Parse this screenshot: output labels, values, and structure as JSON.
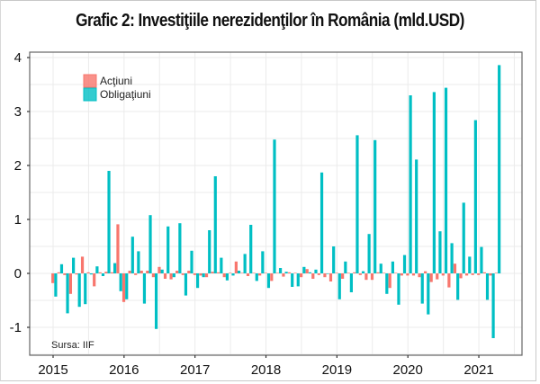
{
  "chart_data": {
    "type": "bar",
    "title": "Grafic 2: Investiţiile nerezidenţilor în România (mld.USD)",
    "xlabel": "",
    "ylabel": "",
    "ylim": [
      -1.5,
      4.1
    ],
    "yticks": [
      4,
      3,
      2,
      1,
      0,
      -1
    ],
    "ytick_labels": [
      "4",
      "3",
      "2",
      "1",
      "0",
      "-1"
    ],
    "xticks": [
      "2015",
      "2016",
      "2017",
      "2018",
      "2019",
      "2020",
      "2021"
    ],
    "grid": true,
    "legend_position": "top-left",
    "source": "Sursa: IIF",
    "colors": {
      "actiuni": "#f8766d",
      "obligatiuni": "#00bfc4"
    },
    "categories": [
      "2015-01",
      "2015-02",
      "2015-03",
      "2015-04",
      "2015-05",
      "2015-06",
      "2015-07",
      "2015-08",
      "2015-09",
      "2015-10",
      "2015-11",
      "2015-12",
      "2016-01",
      "2016-02",
      "2016-03",
      "2016-04",
      "2016-05",
      "2016-06",
      "2016-07",
      "2016-08",
      "2016-09",
      "2016-10",
      "2016-11",
      "2016-12",
      "2017-01",
      "2017-02",
      "2017-03",
      "2017-04",
      "2017-05",
      "2017-06",
      "2017-07",
      "2017-08",
      "2017-09",
      "2017-10",
      "2017-11",
      "2017-12",
      "2018-01",
      "2018-02",
      "2018-03",
      "2018-04",
      "2018-05",
      "2018-06",
      "2018-07",
      "2018-08",
      "2018-09",
      "2018-10",
      "2018-11",
      "2018-12",
      "2019-01",
      "2019-02",
      "2019-03",
      "2019-04",
      "2019-05",
      "2019-06",
      "2019-07",
      "2019-08",
      "2019-09",
      "2019-10",
      "2019-11",
      "2019-12",
      "2020-01",
      "2020-02",
      "2020-03",
      "2020-04",
      "2020-05",
      "2020-06",
      "2020-07",
      "2020-08",
      "2020-09",
      "2020-10",
      "2020-11",
      "2020-12",
      "2021-01",
      "2021-02",
      "2021-03",
      "2021-04"
    ],
    "series": [
      {
        "name": "Acţiuni",
        "values": [
          -0.18,
          0.02,
          -0.03,
          -0.38,
          -0.02,
          0.31,
          0.02,
          -0.24,
          0.02,
          0.03,
          0.02,
          0.91,
          -0.53,
          0.05,
          -0.03,
          0.05,
          0.05,
          -0.07,
          0.12,
          -0.1,
          -0.11,
          0.05,
          -0.03,
          0.05,
          -0.03,
          -0.04,
          -0.07,
          0.03,
          0.02,
          -0.07,
          0.01,
          0.22,
          0.01,
          -0.05,
          0.01,
          -0.04,
          0.01,
          -0.14,
          0.01,
          -0.06,
          0.02,
          0.01,
          -0.07,
          0.08,
          -0.1,
          -0.03,
          -0.07,
          -0.15,
          0.01,
          -0.1,
          0.01,
          0.02,
          -0.03,
          -0.12,
          -0.12,
          0.02,
          0.01,
          -0.27,
          0.01,
          -0.04,
          -0.04,
          -0.04,
          -0.07,
          0.04,
          -0.16,
          -0.11,
          -0.04,
          -0.26,
          0.18,
          -0.09,
          -0.04,
          -0.03,
          -0.03,
          0.02,
          -0.04,
          0.01
        ]
      },
      {
        "name": "Obligaţiuni",
        "values": [
          -0.43,
          0.17,
          -0.74,
          0.29,
          -0.62,
          -0.57,
          -0.02,
          0.13,
          -0.05,
          1.9,
          0.19,
          -0.33,
          -0.48,
          0.68,
          0.41,
          -0.56,
          1.08,
          -1.03,
          0.07,
          0.87,
          -0.07,
          0.93,
          -0.41,
          0.42,
          -0.27,
          -0.07,
          0.8,
          1.8,
          0.29,
          -0.13,
          -0.04,
          0.05,
          0.36,
          0.9,
          -0.14,
          0.41,
          -0.27,
          2.48,
          0.1,
          0.03,
          -0.25,
          -0.24,
          0.12,
          0.02,
          0.07,
          1.87,
          0.0,
          0.5,
          -0.48,
          0.22,
          -0.35,
          2.56,
          0.04,
          0.73,
          2.47,
          0.18,
          -0.38,
          0.22,
          -0.58,
          0.34,
          3.3,
          2.11,
          -0.56,
          -0.76,
          3.36,
          0.78,
          3.44,
          0.56,
          -0.49,
          1.31,
          0.31,
          2.84,
          0.49,
          -0.49,
          -1.2,
          3.86
        ]
      }
    ]
  }
}
